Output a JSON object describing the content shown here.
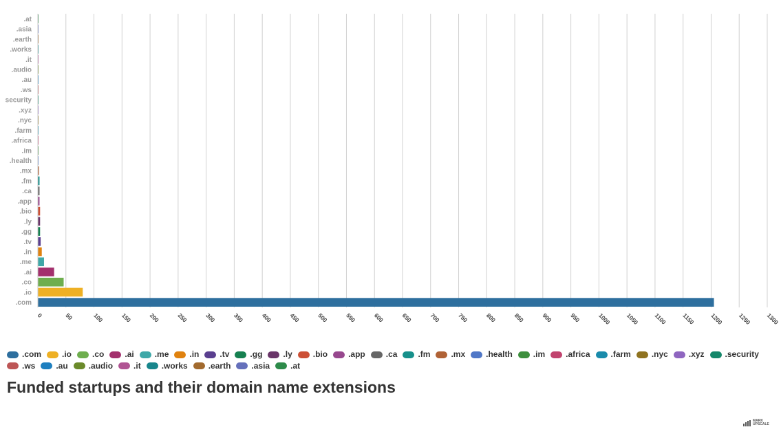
{
  "chart_data": {
    "type": "bar",
    "orientation": "horizontal",
    "title": "Funded startups and their domain name extensions",
    "categories": [
      ".com",
      ".io",
      ".co",
      ".ai",
      ".me",
      ".in",
      ".tv",
      ".gg",
      ".ly",
      ".bio",
      ".app",
      ".ca",
      ".fm",
      ".mx",
      ".health",
      ".im",
      ".africa",
      ".farm",
      ".nyc",
      ".xyz",
      "security",
      ".ws",
      ".au",
      ".audio",
      ".it",
      ".works",
      ".earth",
      ".asia",
      ".at"
    ],
    "values": [
      1205,
      80,
      46,
      29,
      11,
      7,
      5,
      4,
      4,
      4,
      3,
      3,
      3,
      2,
      1,
      1,
      1,
      1,
      1,
      1,
      1,
      1,
      1,
      1,
      1,
      1,
      1,
      1,
      1
    ],
    "colors": [
      "#2e6f9e",
      "#eeb024",
      "#6eae4e",
      "#a3306d",
      "#3ea8a8",
      "#e0820f",
      "#5a3f8f",
      "#168050",
      "#6a3669",
      "#cc5035",
      "#97488e",
      "#666666",
      "#17908b",
      "#b06236",
      "#4f77c7",
      "#3d8f3d",
      "#c1436e",
      "#1a8bab",
      "#8f7320",
      "#8f66c0",
      "#14876a",
      "#bd5656",
      "#1e7fbf",
      "#6b8a2a",
      "#b05493",
      "#18868c",
      "#a26a2e",
      "#6570bb",
      "#2d8b4a"
    ],
    "legend_labels": [
      ".com",
      ".io",
      ".co",
      ".ai",
      ".me",
      ".in",
      ".tv",
      ".gg",
      ".ly",
      ".bio",
      ".app",
      ".ca",
      ".fm",
      ".mx",
      ".health",
      ".im",
      ".africa",
      ".farm",
      ".nyc",
      ".xyz",
      ".security",
      ".ws",
      ".au",
      ".audio",
      ".it",
      ".works",
      ".earth",
      ".asia",
      ".at"
    ],
    "xlim": [
      0,
      1300
    ],
    "xticks": [
      0,
      50,
      100,
      150,
      200,
      250,
      300,
      350,
      400,
      450,
      500,
      550,
      600,
      650,
      700,
      750,
      800,
      850,
      900,
      950,
      1000,
      1050,
      1100,
      1150,
      1200,
      1250,
      1300
    ],
    "grid": "vertical",
    "legend_position": "bottom",
    "xlabel": "",
    "ylabel": ""
  },
  "brand": {
    "line1": "MARK",
    "line2": "UPSCALE"
  }
}
